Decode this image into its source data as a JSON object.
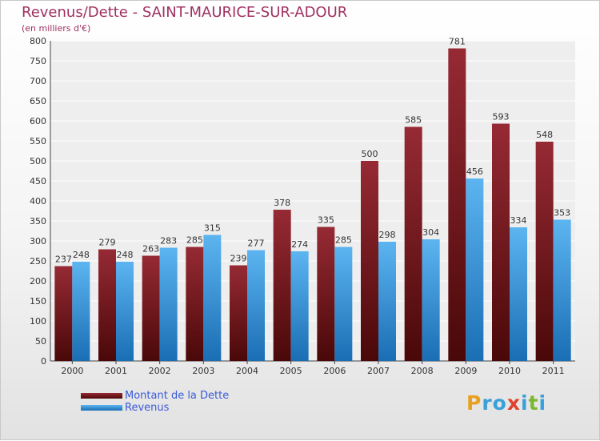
{
  "chart_data": {
    "type": "bar",
    "title": "Revenus/Dette - SAINT-MAURICE-SUR-ADOUR",
    "subtitle": "(en milliers d'€)",
    "categories": [
      "2000",
      "2001",
      "2002",
      "2003",
      "2004",
      "2005",
      "2006",
      "2007",
      "2008",
      "2009",
      "2010",
      "2011"
    ],
    "series": [
      {
        "name": "Montant de la Dette",
        "color": "#7a1c24",
        "values": [
          237,
          279,
          263,
          285,
          239,
          378,
          335,
          500,
          585,
          781,
          593,
          548
        ]
      },
      {
        "name": "Revenus",
        "color": "#3a9ae4",
        "values": [
          248,
          248,
          283,
          315,
          277,
          274,
          285,
          298,
          304,
          456,
          334,
          353
        ]
      }
    ],
    "ylim": [
      0,
      800
    ],
    "yticks": [
      0,
      50,
      100,
      150,
      200,
      250,
      300,
      350,
      400,
      450,
      500,
      550,
      600,
      650,
      700,
      750,
      800
    ],
    "grid": true,
    "legend_position": "bottom-left"
  },
  "logo": {
    "text": "Proxiti",
    "letter_colors": [
      "#e8a020",
      "#3aa0d8",
      "#3aa0d8",
      "#e04030",
      "#3aa0d8",
      "#7ab830",
      "#3aa0d8"
    ]
  }
}
